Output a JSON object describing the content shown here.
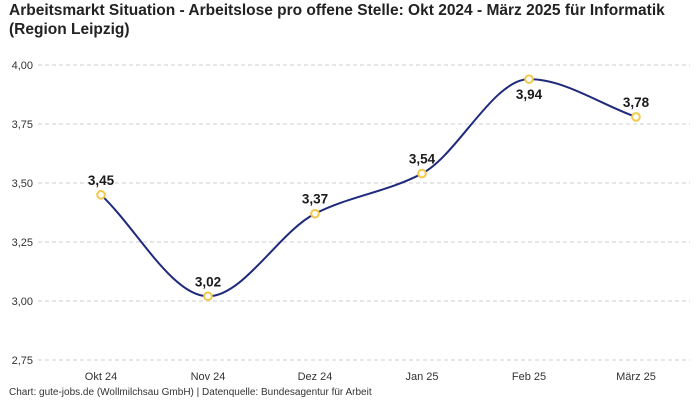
{
  "header": {
    "title": "Arbeitsmarkt Situation - Arbeitslose pro offene Stelle: Okt 2024 - März 2025 für Informatik (Region Leipzig)"
  },
  "footer": {
    "text": "Chart: gute-jobs.de (Wollmilchsau GmbH) | Datenquelle: Bundesagentur für Arbeit"
  },
  "colors": {
    "line": "#1f2a7c",
    "marker": "#f2c94c",
    "grid": "#cccccc"
  },
  "chart_data": {
    "type": "line",
    "title": "Arbeitsmarkt Situation - Arbeitslose pro offene Stelle: Okt 2024 - März 2025 für Informatik (Region Leipzig)",
    "xlabel": "",
    "ylabel": "",
    "categories": [
      "Okt 24",
      "Nov 24",
      "Dez 24",
      "Jan 25",
      "Feb 25",
      "März 25"
    ],
    "series": [
      {
        "name": "Arbeitslose pro offene Stelle",
        "values": [
          3.45,
          3.02,
          3.37,
          3.54,
          3.94,
          3.78
        ]
      }
    ],
    "data_labels": [
      "3,45",
      "3,02",
      "3,37",
      "3,54",
      "3,94",
      "3,78"
    ],
    "y_ticks": [
      2.75,
      3.0,
      3.25,
      3.5,
      3.75,
      4.0
    ],
    "y_tick_labels": [
      "2,75",
      "3,00",
      "3,25",
      "3,50",
      "3,75",
      "4,00"
    ],
    "ylim": [
      2.75,
      4.0
    ],
    "grid": true,
    "legend": "none"
  }
}
